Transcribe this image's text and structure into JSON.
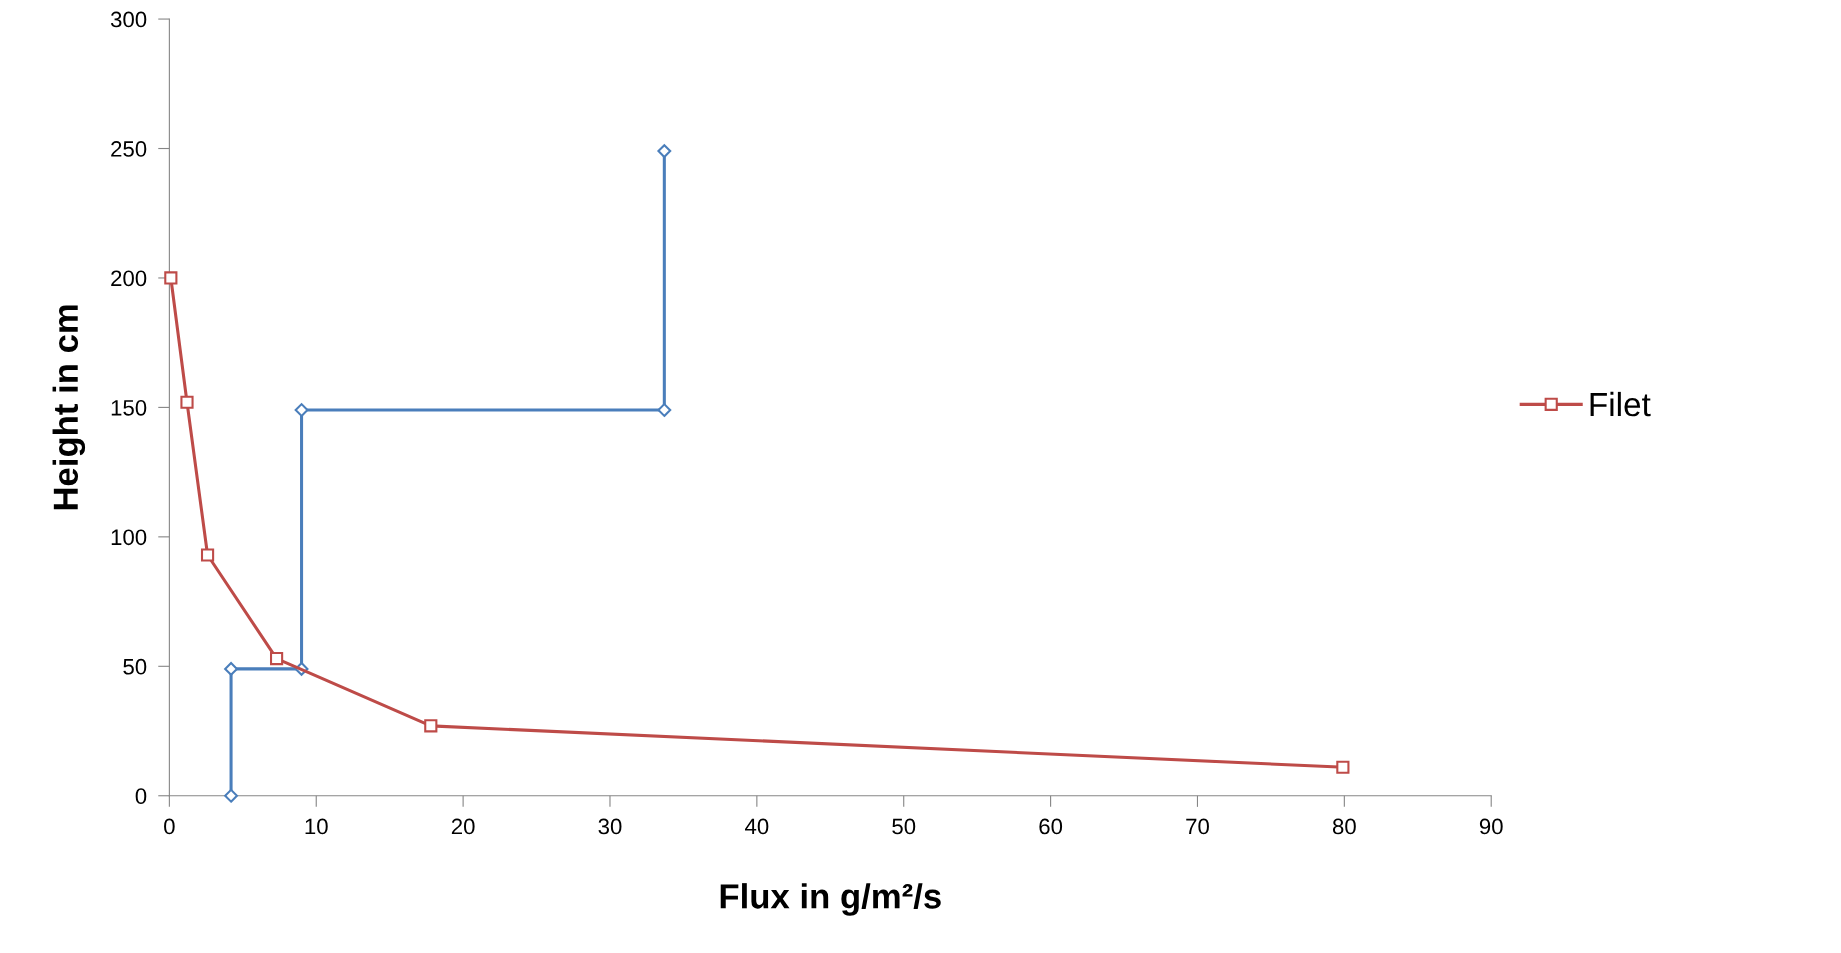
{
  "chart_data": {
    "type": "line",
    "xlabel": "Flux in g/m²/s",
    "ylabel": "Height in cm",
    "xlim": [
      0,
      90
    ],
    "xticks": [
      0,
      10,
      20,
      30,
      40,
      50,
      60,
      70,
      80,
      90
    ],
    "ylim": [
      0,
      300
    ],
    "yticks": [
      0,
      50,
      100,
      150,
      200,
      250,
      300
    ],
    "grid": false,
    "legend": "right",
    "series": [
      {
        "color": "#4a7ebb",
        "marker": "diamond",
        "x": [
          4.2,
          4.2,
          9.0,
          9.0,
          33.7,
          33.7
        ],
        "values": [
          0,
          49,
          49,
          149,
          149,
          249
        ]
      },
      {
        "name": "Filet",
        "color": "#be4b48",
        "marker": "square",
        "x": [
          0.1,
          1.2,
          2.6,
          7.3,
          17.8,
          79.9
        ],
        "values": [
          200,
          152,
          93,
          53,
          27,
          11
        ]
      }
    ]
  }
}
